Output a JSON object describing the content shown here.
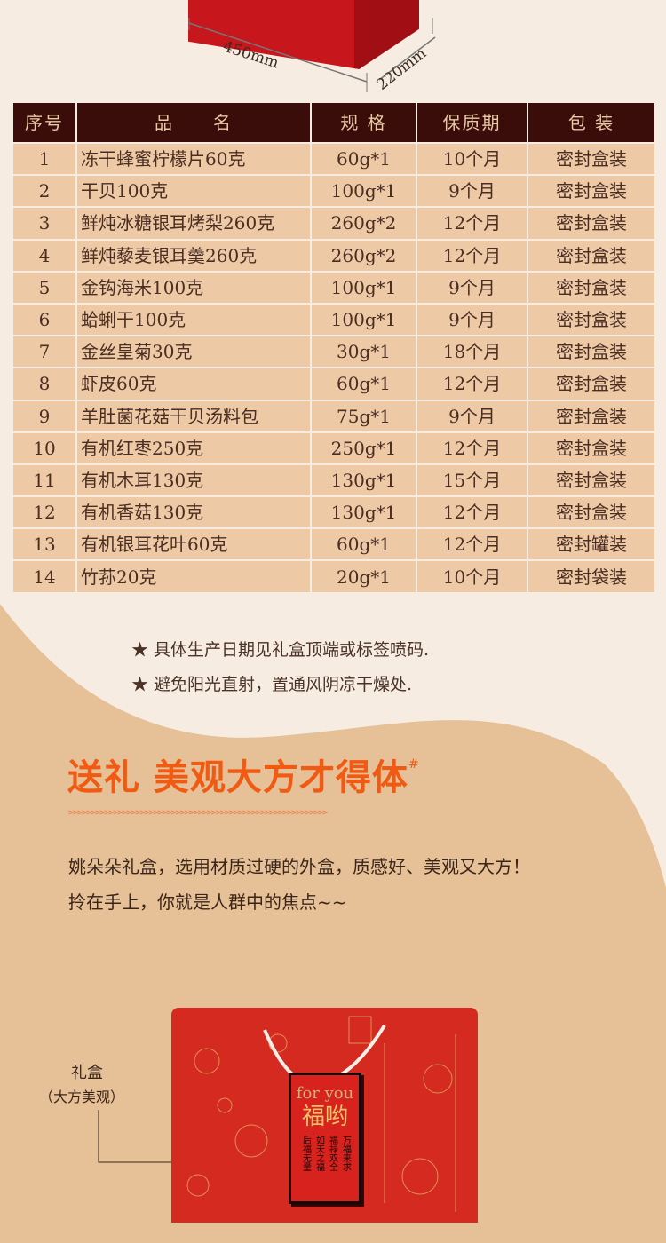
{
  "dimensions": {
    "width": "450mm",
    "depth": "220mm"
  },
  "table": {
    "headers": [
      "序号",
      "品　　名",
      "规 格",
      "保质期",
      "包 装"
    ],
    "rows": [
      [
        "1",
        "冻干蜂蜜柠檬片60克",
        "60g*1",
        "10个月",
        "密封盒装"
      ],
      [
        "2",
        "干贝100克",
        "100g*1",
        "9个月",
        "密封盒装"
      ],
      [
        "3",
        "鲜炖冰糖银耳烤梨260克",
        "260g*2",
        "12个月",
        "密封盒装"
      ],
      [
        "4",
        "鲜炖藜麦银耳羹260克",
        "260g*2",
        "12个月",
        "密封盒装"
      ],
      [
        "5",
        "金钩海米100克",
        "100g*1",
        "9个月",
        "密封盒装"
      ],
      [
        "6",
        "蛤蜊干100克",
        "100g*1",
        "9个月",
        "密封盒装"
      ],
      [
        "7",
        "金丝皇菊30克",
        "30g*1",
        "18个月",
        "密封盒装"
      ],
      [
        "8",
        "虾皮60克",
        "60g*1",
        "12个月",
        "密封盒装"
      ],
      [
        "9",
        "羊肚菌花菇干贝汤料包",
        "75g*1",
        "9个月",
        "密封盒装"
      ],
      [
        "10",
        "有机红枣250克",
        "250g*1",
        "12个月",
        "密封盒装"
      ],
      [
        "11",
        "有机木耳130克",
        "130g*1",
        "15个月",
        "密封盒装"
      ],
      [
        "12",
        "有机香菇130克",
        "130g*1",
        "12个月",
        "密封盒装"
      ],
      [
        "13",
        "有机银耳花叶60克",
        "60g*1",
        "12个月",
        "密封罐装"
      ],
      [
        "14",
        "竹荪20克",
        "20g*1",
        "10个月",
        "密封袋装"
      ]
    ]
  },
  "notes": [
    "★ 具体生产日期见礼盒顶端或标签喷码.",
    "★ 避免阳光直射，置通风阴凉干燥处."
  ],
  "section": {
    "title": "送礼 美观大方才得体",
    "title_mark": "#",
    "arrows": ">>>>>>>>>>>>>>>>>>>>>>>>>>>>>>>>>>>>>>>>>>>>>>>>>>>>>>>>>>",
    "line1": "姚朵朵礼盒，选用材质过硬的外盒，质感好、美观又大方！",
    "line2": "拎在手上，你就是人群中的焦点~~"
  },
  "gift_box": {
    "label": "礼盒",
    "sublabel": "（大方美观）",
    "tag_en": "for you",
    "tag_cn": "福哟",
    "tag_verses": [
      "万福来求",
      "福禄双全",
      "如天之福",
      "后福无量"
    ]
  },
  "colors": {
    "header_bg": "#3a0d0b",
    "row_bg": "#edc9a6",
    "accent": "#f05a12",
    "box_red": "#d42a20"
  }
}
